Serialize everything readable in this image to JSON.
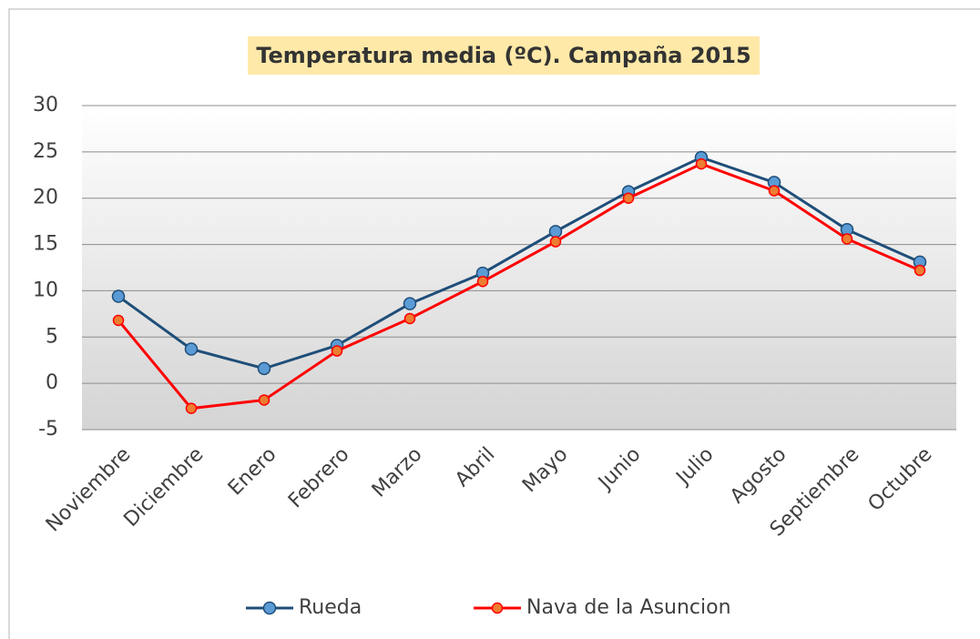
{
  "chart_data": {
    "type": "line",
    "title": "Temperatura media (ºC). Campaña 2015",
    "categories": [
      "Noviembre",
      "Diciembre",
      "Enero",
      "Febrero",
      "Marzo",
      "Abril",
      "Mayo",
      "Junio",
      "Julio",
      "Agosto",
      "Septiembre",
      "Octubre"
    ],
    "series": [
      {
        "name": "Rueda",
        "color": "#1f4e79",
        "marker_color": "#5b9bd5",
        "values": [
          9.4,
          3.7,
          1.6,
          4.1,
          8.6,
          11.9,
          16.4,
          20.7,
          24.4,
          21.7,
          16.6,
          13.1
        ]
      },
      {
        "name": "Nava de la Asuncion",
        "color": "#ff0000",
        "marker_color": "#ed7d31",
        "values": [
          6.8,
          -2.7,
          -1.8,
          3.5,
          7.0,
          11.0,
          15.3,
          20.0,
          23.7,
          20.8,
          15.6,
          12.2
        ]
      }
    ],
    "ylim": [
      -5,
      30
    ],
    "yticks": [
      -5,
      0,
      5,
      10,
      15,
      20,
      25,
      30
    ],
    "grid": true,
    "legend": "bottom"
  }
}
